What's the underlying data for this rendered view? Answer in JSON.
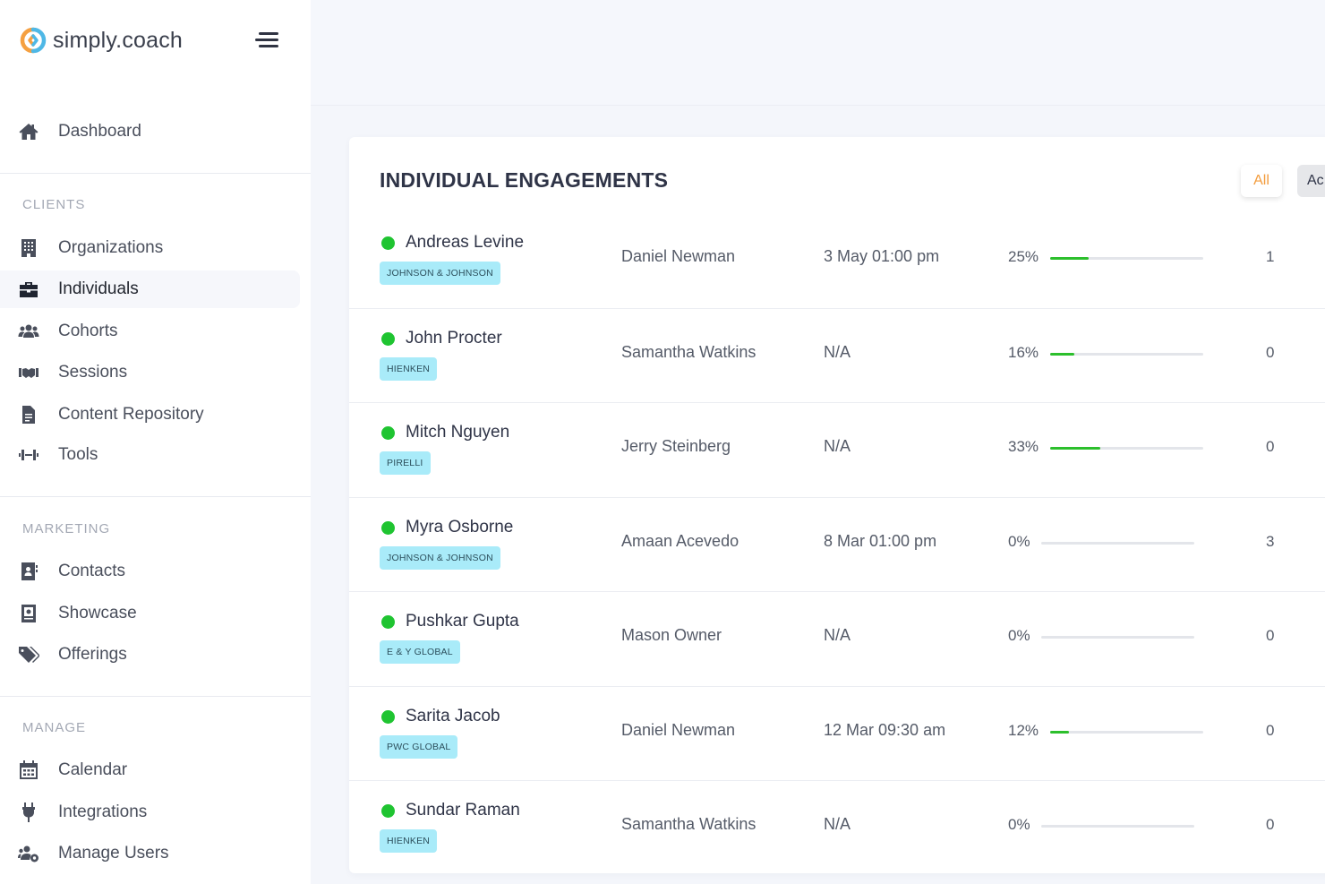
{
  "brand": {
    "name": "simply.coach"
  },
  "nav": {
    "dashboard": "Dashboard",
    "clients_title": "CLIENTS",
    "clients": [
      "Organizations",
      "Individuals",
      "Cohorts",
      "Sessions",
      "Content Repository",
      "Tools"
    ],
    "marketing_title": "MARKETING",
    "marketing": [
      "Contacts",
      "Showcase",
      "Offerings"
    ],
    "manage_title": "MANAGE",
    "manage": [
      "Calendar",
      "Integrations",
      "Manage Users"
    ],
    "active": "Individuals",
    "icons": {
      "dashboard": "home-icon",
      "organizations": "building-icon",
      "individuals": "briefcase-icon",
      "cohorts": "users-icon",
      "sessions": "handshake-icon",
      "content": "file-icon",
      "tools": "dumbbell-icon",
      "contacts": "address-book-icon",
      "showcase": "showcase-icon",
      "offerings": "tags-icon",
      "calendar": "calendar-icon",
      "integrations": "plug-icon",
      "manage_users": "users-cog-icon"
    }
  },
  "engagements": {
    "title": "INDIVIDUAL ENGAGEMENTS",
    "filters": {
      "all": "All",
      "active": "Ac"
    },
    "rows": [
      {
        "name": "Andreas Levine",
        "org": "JOHNSON & JOHNSON",
        "coach": "Daniel Newman",
        "session": "3 May 01:00 pm",
        "progress_label": "25%",
        "progress": 0.25,
        "count": "1"
      },
      {
        "name": "John Procter",
        "org": "HIENKEN",
        "coach": "Samantha Watkins",
        "session": "N/A",
        "progress_label": "16%",
        "progress": 0.16,
        "count": "0"
      },
      {
        "name": "Mitch Nguyen",
        "org": "PIRELLI",
        "coach": "Jerry Steinberg",
        "session": "N/A",
        "progress_label": "33%",
        "progress": 0.33,
        "count": "0"
      },
      {
        "name": "Myra Osborne",
        "org": "JOHNSON & JOHNSON",
        "coach": "Amaan Acevedo",
        "session": "8 Mar 01:00 pm",
        "progress_label": "0%",
        "progress": 0,
        "count": "3"
      },
      {
        "name": "Pushkar Gupta",
        "org": "E & Y GLOBAL",
        "coach": "Mason Owner",
        "session": "N/A",
        "progress_label": "0%",
        "progress": 0,
        "count": "0"
      },
      {
        "name": "Sarita Jacob",
        "org": "PWC GLOBAL",
        "coach": "Daniel Newman",
        "session": "12 Mar 09:30 am",
        "progress_label": "12%",
        "progress": 0.12,
        "count": "0"
      },
      {
        "name": "Sundar Raman",
        "org": "HIENKEN",
        "coach": "Samantha Watkins",
        "session": "N/A",
        "progress_label": "0%",
        "progress": 0,
        "count": "0"
      }
    ]
  },
  "colors": {
    "accent_orange": "#f39c3d",
    "status_green": "#1fc431",
    "progress_green": "#2cbf2c",
    "tag_bg": "#a9ebf9"
  }
}
